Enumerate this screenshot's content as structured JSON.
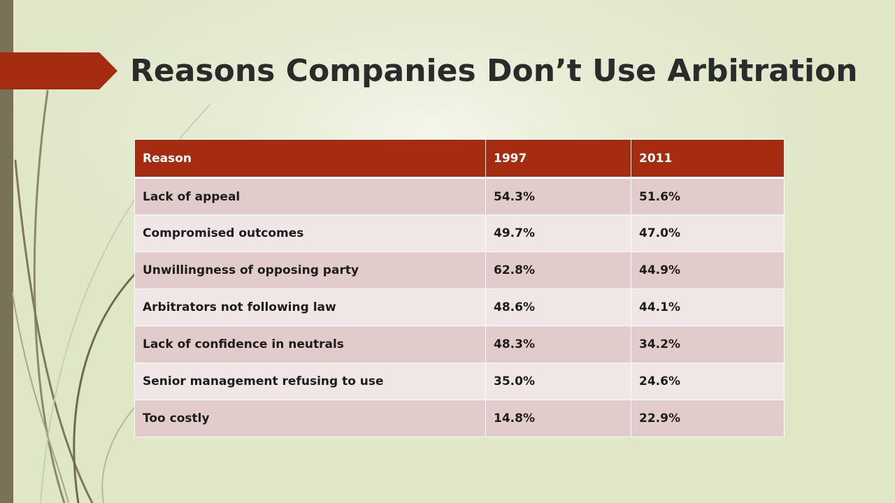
{
  "slide": {
    "title": "Reasons Companies Don’t Use Arbitration"
  },
  "colors": {
    "accent": "#a52b11",
    "side_bar": "#7a7257",
    "background": "#e2e9cc",
    "row_dark": "#e2cccb",
    "row_light": "#f0e6e5"
  },
  "table": {
    "headers": [
      "Reason",
      "1997",
      "2011"
    ],
    "rows": [
      [
        "Lack of appeal",
        "54.3%",
        "51.6%"
      ],
      [
        "Compromised outcomes",
        "49.7%",
        "47.0%"
      ],
      [
        "Unwillingness of opposing party",
        "62.8%",
        "44.9%"
      ],
      [
        "Arbitrators not following law",
        "48.6%",
        "44.1%"
      ],
      [
        "Lack of confidence in neutrals",
        "48.3%",
        "34.2%"
      ],
      [
        "Senior management refusing to use",
        "35.0%",
        "24.6%"
      ],
      [
        "Too costly",
        "14.8%",
        "22.9%"
      ]
    ]
  }
}
